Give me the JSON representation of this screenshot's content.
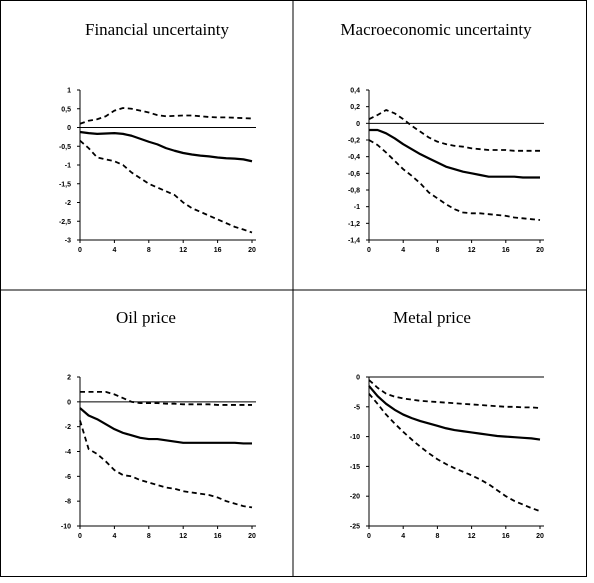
{
  "chart_data": [
    {
      "type": "line",
      "title": "Financial uncertainty",
      "x": [
        0,
        1,
        2,
        3,
        4,
        5,
        6,
        7,
        8,
        9,
        10,
        11,
        12,
        13,
        14,
        15,
        16,
        17,
        18,
        19,
        20
      ],
      "xticks": [
        0,
        4,
        8,
        12,
        16,
        20
      ],
      "ylim": [
        -3,
        1
      ],
      "yticks": [
        1,
        0.5,
        0,
        -0.5,
        -1,
        -1.5,
        -2,
        -2.5,
        -3
      ],
      "ytick_labels": [
        "1",
        "0,5",
        "0",
        "-0,5",
        "-1",
        "-1,5",
        "-2",
        "-2,5",
        "-3"
      ],
      "series": [
        {
          "role": "upper",
          "style": "dashed",
          "values": [
            0.1,
            0.18,
            0.22,
            0.3,
            0.45,
            0.52,
            0.5,
            0.45,
            0.4,
            0.33,
            0.3,
            0.31,
            0.32,
            0.32,
            0.3,
            0.28,
            0.27,
            0.27,
            0.26,
            0.25,
            0.24
          ]
        },
        {
          "role": "median",
          "style": "solid",
          "values": [
            -0.12,
            -0.15,
            -0.17,
            -0.16,
            -0.15,
            -0.17,
            -0.22,
            -0.3,
            -0.38,
            -0.45,
            -0.55,
            -0.62,
            -0.68,
            -0.72,
            -0.75,
            -0.77,
            -0.8,
            -0.82,
            -0.83,
            -0.85,
            -0.9
          ]
        },
        {
          "role": "lower",
          "style": "dashed",
          "values": [
            -0.35,
            -0.55,
            -0.8,
            -0.85,
            -0.9,
            -1.0,
            -1.2,
            -1.35,
            -1.5,
            -1.6,
            -1.7,
            -1.8,
            -2.0,
            -2.15,
            -2.25,
            -2.35,
            -2.45,
            -2.55,
            -2.65,
            -2.72,
            -2.8
          ]
        }
      ]
    },
    {
      "type": "line",
      "title": "Macroeconomic uncertainty",
      "x": [
        0,
        1,
        2,
        3,
        4,
        5,
        6,
        7,
        8,
        9,
        10,
        11,
        12,
        13,
        14,
        15,
        16,
        17,
        18,
        19,
        20
      ],
      "xticks": [
        0,
        4,
        8,
        12,
        16,
        20
      ],
      "ylim": [
        -1.4,
        0.4
      ],
      "yticks": [
        0.4,
        0.2,
        0,
        -0.2,
        -0.4,
        -0.6,
        -0.8,
        -1,
        -1.2,
        -1.4
      ],
      "ytick_labels": [
        "0,4",
        "0,2",
        "0",
        "-0,2",
        "-0,4",
        "-0,6",
        "-0,8",
        "-1",
        "-1,2",
        "-1,4"
      ],
      "series": [
        {
          "role": "upper",
          "style": "dashed",
          "values": [
            0.05,
            0.1,
            0.16,
            0.12,
            0.05,
            -0.03,
            -0.1,
            -0.17,
            -0.22,
            -0.25,
            -0.27,
            -0.28,
            -0.3,
            -0.31,
            -0.32,
            -0.32,
            -0.32,
            -0.33,
            -0.33,
            -0.33,
            -0.33
          ]
        },
        {
          "role": "median",
          "style": "solid",
          "values": [
            -0.08,
            -0.08,
            -0.12,
            -0.18,
            -0.25,
            -0.31,
            -0.37,
            -0.42,
            -0.47,
            -0.52,
            -0.55,
            -0.58,
            -0.6,
            -0.62,
            -0.64,
            -0.64,
            -0.64,
            -0.64,
            -0.65,
            -0.65,
            -0.65
          ]
        },
        {
          "role": "lower",
          "style": "dashed",
          "values": [
            -0.2,
            -0.26,
            -0.35,
            -0.45,
            -0.55,
            -0.63,
            -0.72,
            -0.83,
            -0.9,
            -0.97,
            -1.03,
            -1.07,
            -1.08,
            -1.08,
            -1.09,
            -1.1,
            -1.11,
            -1.13,
            -1.14,
            -1.15,
            -1.16
          ]
        }
      ]
    },
    {
      "type": "line",
      "title": "Oil price",
      "x": [
        0,
        1,
        2,
        3,
        4,
        5,
        6,
        7,
        8,
        9,
        10,
        11,
        12,
        13,
        14,
        15,
        16,
        17,
        18,
        19,
        20
      ],
      "xticks": [
        0,
        4,
        8,
        12,
        16,
        20
      ],
      "ylim": [
        -10,
        2
      ],
      "yticks": [
        2,
        0,
        -2,
        -4,
        -6,
        -8,
        -10
      ],
      "ytick_labels": [
        "2",
        "0",
        "-2",
        "-4",
        "-6",
        "-8",
        "-10"
      ],
      "series": [
        {
          "role": "upper",
          "style": "dashed",
          "values": [
            0.8,
            0.8,
            0.8,
            0.8,
            0.6,
            0.3,
            0.0,
            -0.1,
            -0.1,
            -0.1,
            -0.15,
            -0.15,
            -0.2,
            -0.2,
            -0.2,
            -0.2,
            -0.25,
            -0.25,
            -0.25,
            -0.25,
            -0.25
          ]
        },
        {
          "role": "median",
          "style": "solid",
          "values": [
            -0.5,
            -1.1,
            -1.4,
            -1.8,
            -2.2,
            -2.5,
            -2.7,
            -2.9,
            -3.0,
            -3.0,
            -3.1,
            -3.2,
            -3.3,
            -3.3,
            -3.3,
            -3.3,
            -3.3,
            -3.3,
            -3.3,
            -3.35,
            -3.35
          ]
        },
        {
          "role": "lower",
          "style": "dashed",
          "values": [
            -1.5,
            -3.8,
            -4.2,
            -4.8,
            -5.5,
            -5.9,
            -6.0,
            -6.3,
            -6.5,
            -6.7,
            -6.9,
            -7.0,
            -7.2,
            -7.3,
            -7.4,
            -7.5,
            -7.7,
            -8.0,
            -8.2,
            -8.4,
            -8.5
          ]
        }
      ]
    },
    {
      "type": "line",
      "title": "Metal price",
      "x": [
        0,
        1,
        2,
        3,
        4,
        5,
        6,
        7,
        8,
        9,
        10,
        11,
        12,
        13,
        14,
        15,
        16,
        17,
        18,
        19,
        20
      ],
      "xticks": [
        0,
        4,
        8,
        12,
        16,
        20
      ],
      "ylim": [
        -25,
        0
      ],
      "yticks": [
        0,
        -5,
        -10,
        -15,
        -20,
        -25
      ],
      "ytick_labels": [
        "0",
        "-5",
        "-10",
        "-15",
        "-20",
        "-25"
      ],
      "series": [
        {
          "role": "upper",
          "style": "dashed",
          "values": [
            -0.5,
            -1.8,
            -2.8,
            -3.3,
            -3.6,
            -3.8,
            -4.0,
            -4.1,
            -4.2,
            -4.3,
            -4.4,
            -4.5,
            -4.6,
            -4.7,
            -4.8,
            -4.9,
            -5.0,
            -5.0,
            -5.1,
            -5.1,
            -5.2
          ]
        },
        {
          "role": "median",
          "style": "solid",
          "values": [
            -1.5,
            -3.2,
            -4.5,
            -5.5,
            -6.3,
            -6.9,
            -7.4,
            -7.8,
            -8.2,
            -8.6,
            -8.9,
            -9.1,
            -9.3,
            -9.5,
            -9.7,
            -9.9,
            -10.0,
            -10.1,
            -10.2,
            -10.3,
            -10.5
          ]
        },
        {
          "role": "lower",
          "style": "dashed",
          "values": [
            -2.8,
            -4.5,
            -6.3,
            -7.8,
            -9.2,
            -10.5,
            -11.7,
            -12.8,
            -13.8,
            -14.6,
            -15.3,
            -15.9,
            -16.5,
            -17.2,
            -18.0,
            -19.0,
            -20.0,
            -20.8,
            -21.4,
            -22.0,
            -22.5
          ]
        }
      ]
    }
  ]
}
